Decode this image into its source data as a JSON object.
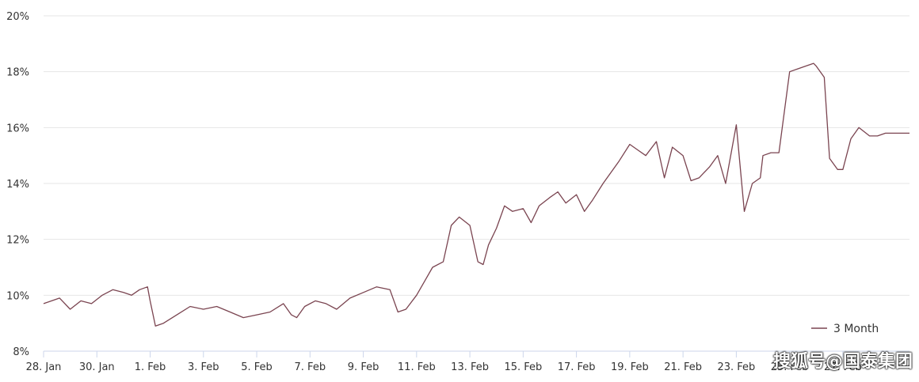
{
  "chart_data": {
    "type": "line",
    "title": "",
    "xlabel": "",
    "ylabel": "",
    "ylim": [
      8,
      20
    ],
    "yticks": [
      "20%",
      "18%",
      "16%",
      "14%",
      "12%",
      "10%",
      "8%"
    ],
    "ytick_values": [
      20,
      18,
      16,
      14,
      12,
      10,
      8
    ],
    "xticks": [
      "28. Jan",
      "30. Jan",
      "1. Feb",
      "3. Feb",
      "5. Feb",
      "7. Feb",
      "9. Feb",
      "11. Feb",
      "13. Feb",
      "15. Feb",
      "17. Feb",
      "19. Feb",
      "21. Feb",
      "23. Feb",
      "25. Feb",
      "27. Feb"
    ],
    "xtick_days": [
      0,
      2,
      4,
      6,
      8,
      10,
      12,
      14,
      16,
      18,
      20,
      22,
      24,
      26,
      28,
      30
    ],
    "grid": true,
    "legend_position": "bottom-right",
    "series_color": "#7a4450",
    "series": [
      {
        "name": "3 Month",
        "x": [
          0,
          0.3,
          0.6,
          1.0,
          1.4,
          1.8,
          2.2,
          2.6,
          3.0,
          3.3,
          3.6,
          3.9,
          4.0,
          4.2,
          4.5,
          5.0,
          5.5,
          6.0,
          6.5,
          7.0,
          7.5,
          8.0,
          8.5,
          9.0,
          9.3,
          9.5,
          9.8,
          10.2,
          10.6,
          11.0,
          11.5,
          12.0,
          12.5,
          13.0,
          13.3,
          13.6,
          14.0,
          14.3,
          14.6,
          15.0,
          15.3,
          15.6,
          16.0,
          16.3,
          16.5,
          16.7,
          17.0,
          17.3,
          17.6,
          18.0,
          18.3,
          18.6,
          19.0,
          19.3,
          19.6,
          20.0,
          20.3,
          20.6,
          21.0,
          21.3,
          21.6,
          22.0,
          22.3,
          22.6,
          23.0,
          23.3,
          23.6,
          24.0,
          24.3,
          24.6,
          25.0,
          25.3,
          25.6,
          26.0,
          26.3,
          26.6,
          26.9,
          27.0,
          27.3,
          27.6,
          28.0,
          28.3,
          28.6,
          28.9,
          29.0,
          29.3,
          29.5,
          29.8,
          30.0,
          30.3,
          30.6,
          31.0,
          31.3,
          31.6,
          32.0,
          32.3,
          32.5
        ],
        "values": [
          9.7,
          9.8,
          9.9,
          9.5,
          9.8,
          9.7,
          10.0,
          10.2,
          10.1,
          10.0,
          10.2,
          10.3,
          9.8,
          8.9,
          9.0,
          9.3,
          9.6,
          9.5,
          9.6,
          9.4,
          9.2,
          9.3,
          9.4,
          9.7,
          9.3,
          9.2,
          9.6,
          9.8,
          9.7,
          9.5,
          9.9,
          10.1,
          10.3,
          10.2,
          9.4,
          9.5,
          10.0,
          10.5,
          11.0,
          11.2,
          12.5,
          12.8,
          12.5,
          11.2,
          11.1,
          11.8,
          12.4,
          13.2,
          13.0,
          13.1,
          12.6,
          13.2,
          13.5,
          13.7,
          13.3,
          13.6,
          13.0,
          13.4,
          14.0,
          14.4,
          14.8,
          15.4,
          15.2,
          15.0,
          15.5,
          14.2,
          15.3,
          15.0,
          14.1,
          14.2,
          14.6,
          15.0,
          14.0,
          16.1,
          13.0,
          14.0,
          14.2,
          15.0,
          15.1,
          15.1,
          18.0,
          18.1,
          18.2,
          18.3,
          18.2,
          17.8,
          14.9,
          14.5,
          14.5,
          15.6,
          16.0,
          15.7,
          15.7,
          15.8,
          15.8,
          15.8,
          15.8
        ]
      }
    ]
  },
  "watermark": "搜狐号@国泰集团"
}
